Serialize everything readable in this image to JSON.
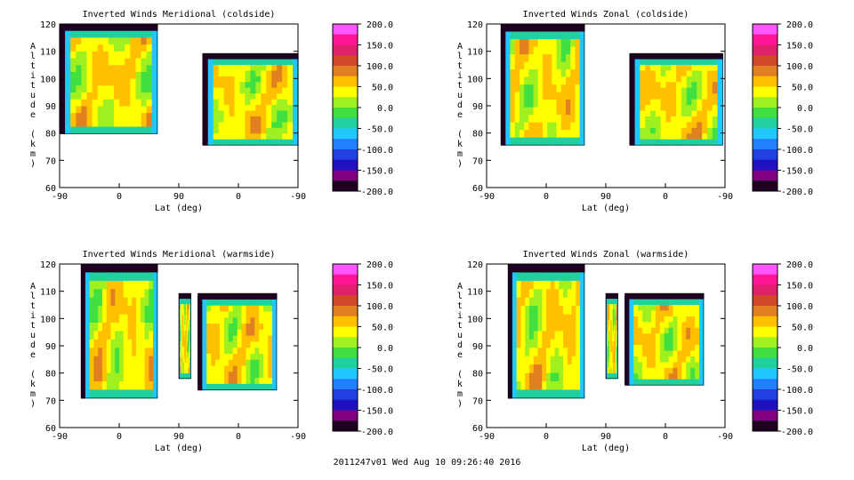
{
  "footer_text": "2011247v01 Wed Aug 10 09:26:40 2016",
  "chart_data": [
    {
      "type": "heatmap",
      "title": "Inverted Winds Meridional (coldside)",
      "xlabel": "Lat (deg)",
      "ylabel": "Altitude (km)",
      "x_ticks": [
        "-90",
        "0",
        "90",
        "0",
        "-90"
      ],
      "y_ticks": [
        60,
        70,
        80,
        90,
        100,
        110,
        120
      ],
      "ylim": [
        60,
        120
      ],
      "colorbar_ticks": [
        "200.0",
        "150.0",
        "100.0",
        "50.0",
        "0.0",
        "-50.0",
        "-100.0",
        "-150.0",
        "-200.0"
      ],
      "colorbar_range": [
        -200,
        200
      ]
    },
    {
      "type": "heatmap",
      "title": "Inverted Winds Zonal (coldside)",
      "xlabel": "Lat (deg)",
      "ylabel": "Altitude (km)",
      "x_ticks": [
        "-90",
        "0",
        "90",
        "0",
        "-90"
      ],
      "y_ticks": [
        60,
        70,
        80,
        90,
        100,
        110,
        120
      ],
      "ylim": [
        60,
        120
      ],
      "colorbar_ticks": [
        "200.0",
        "150.0",
        "100.0",
        "50.0",
        "0.0",
        "-50.0",
        "-100.0",
        "-150.0",
        "-200.0"
      ],
      "colorbar_range": [
        -200,
        200
      ]
    },
    {
      "type": "heatmap",
      "title": "Inverted Winds Meridional (warmside)",
      "xlabel": "Lat (deg)",
      "ylabel": "Altitude (km)",
      "x_ticks": [
        "-90",
        "0",
        "90",
        "0",
        "-90"
      ],
      "y_ticks": [
        60,
        70,
        80,
        90,
        100,
        110,
        120
      ],
      "ylim": [
        60,
        120
      ],
      "colorbar_ticks": [
        "200.0",
        "150.0",
        "100.0",
        "50.0",
        "0.0",
        "-50.0",
        "-100.0",
        "-150.0",
        "-200.0"
      ],
      "colorbar_range": [
        -200,
        200
      ]
    },
    {
      "type": "heatmap",
      "title": "Inverted Winds Zonal (warmside)",
      "xlabel": "Lat (deg)",
      "ylabel": "Altitude (km)",
      "x_ticks": [
        "-90",
        "0",
        "90",
        "0",
        "-90"
      ],
      "y_ticks": [
        60,
        70,
        80,
        90,
        100,
        110,
        120
      ],
      "ylim": [
        60,
        120
      ],
      "colorbar_ticks": [
        "200.0",
        "150.0",
        "100.0",
        "50.0",
        "0.0",
        "-50.0",
        "-100.0",
        "-150.0",
        "-200.0"
      ],
      "colorbar_range": [
        -200,
        200
      ]
    }
  ],
  "colormap": [
    "#ff55ff",
    "#ff1493",
    "#e0206a",
    "#d2492a",
    "#e08020",
    "#ffc000",
    "#ffff00",
    "#a0f020",
    "#40e040",
    "#20d0a0",
    "#20c8ff",
    "#2080ff",
    "#2040e0",
    "#2010c0",
    "#800080",
    "#200020"
  ]
}
